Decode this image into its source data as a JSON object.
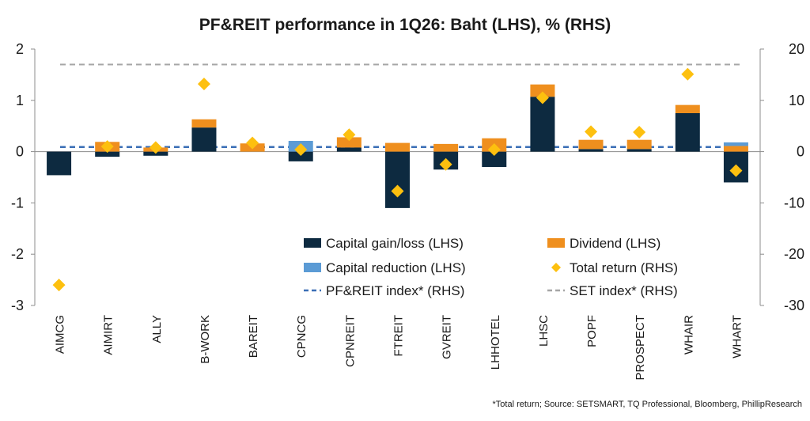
{
  "chart_data": {
    "type": "bar",
    "title": "PF&REIT performance in 1Q26: Baht (LHS), % (RHS)",
    "categories": [
      "AIMCG",
      "AIMIRT",
      "ALLY",
      "B-WORK",
      "BAREIT",
      "CPNCG",
      "CPNREIT",
      "FTREIT",
      "GVREIT",
      "LHHOTEL",
      "LHSC",
      "POPF",
      "PROSPECT",
      "WHAIR",
      "WHART"
    ],
    "left_axis": {
      "ylim": [
        -3,
        2
      ],
      "ticks": [
        "-3",
        "-2",
        "-1",
        "0",
        "1",
        "2"
      ],
      "tick_values": [
        -3,
        -2,
        -1,
        0,
        1,
        2
      ]
    },
    "right_axis": {
      "ylim": [
        -30,
        20
      ],
      "ticks": [
        "-30",
        "-20",
        "-10",
        "0",
        "10",
        "20"
      ],
      "tick_values": [
        -30,
        -20,
        -10,
        0,
        10,
        20
      ]
    },
    "series": [
      {
        "name": "Capital gain/loss (LHS)",
        "kind": "stacked-bar",
        "axis": "left",
        "color": "#0d2a40",
        "values": [
          -0.46,
          -0.1,
          -0.08,
          0.47,
          0.0,
          -0.19,
          0.08,
          -1.1,
          -0.35,
          -0.3,
          1.07,
          0.05,
          0.05,
          0.75,
          -0.6
        ]
      },
      {
        "name": "Dividend (LHS)",
        "kind": "stacked-bar",
        "axis": "left",
        "color": "#ef8f1e",
        "values": [
          0.0,
          0.19,
          0.08,
          0.16,
          0.16,
          0.0,
          0.2,
          0.17,
          0.15,
          0.26,
          0.24,
          0.18,
          0.18,
          0.16,
          0.11
        ]
      },
      {
        "name": "Capital reduction (LHS)",
        "kind": "stacked-bar",
        "axis": "left",
        "color": "#5b9bd5",
        "values": [
          0.0,
          0.0,
          0.0,
          0.0,
          0.0,
          0.21,
          0.0,
          0.0,
          0.0,
          0.0,
          0.0,
          0.0,
          0.0,
          0.0,
          0.07
        ]
      },
      {
        "name": "Total return (RHS)",
        "kind": "marker",
        "axis": "right",
        "color": "#fdc00f",
        "values": [
          -26.0,
          1.0,
          0.8,
          13.2,
          1.7,
          0.4,
          3.3,
          -7.7,
          -2.5,
          0.4,
          10.5,
          3.9,
          3.8,
          15.1,
          -3.7
        ]
      },
      {
        "name": "PF&REIT index* (RHS)",
        "kind": "hline",
        "axis": "right",
        "color": "#3b6fb6",
        "value": 0.9
      },
      {
        "name": "SET index* (RHS)",
        "kind": "hline",
        "axis": "right",
        "color": "#a6a6a6",
        "value": 17.0
      }
    ],
    "legend": {
      "placement": "bottom-center inside plot",
      "entries": [
        {
          "label": "Capital gain/loss (LHS)",
          "symbol": "bar",
          "color": "#0d2a40"
        },
        {
          "label": "Dividend (LHS)",
          "symbol": "bar",
          "color": "#ef8f1e"
        },
        {
          "label": "Capital reduction (LHS)",
          "symbol": "bar",
          "color": "#5b9bd5"
        },
        {
          "label": "Total return (RHS)",
          "symbol": "diamond",
          "color": "#fdc00f"
        },
        {
          "label": "PF&REIT index* (RHS)",
          "symbol": "dash",
          "color": "#3b6fb6"
        },
        {
          "label": "SET index* (RHS)",
          "symbol": "dash",
          "color": "#a6a6a6"
        }
      ]
    },
    "footnote": "*Total return; Source: SETSMART, TQ Professional, Bloomberg, PhillipResearch",
    "grid": false
  }
}
